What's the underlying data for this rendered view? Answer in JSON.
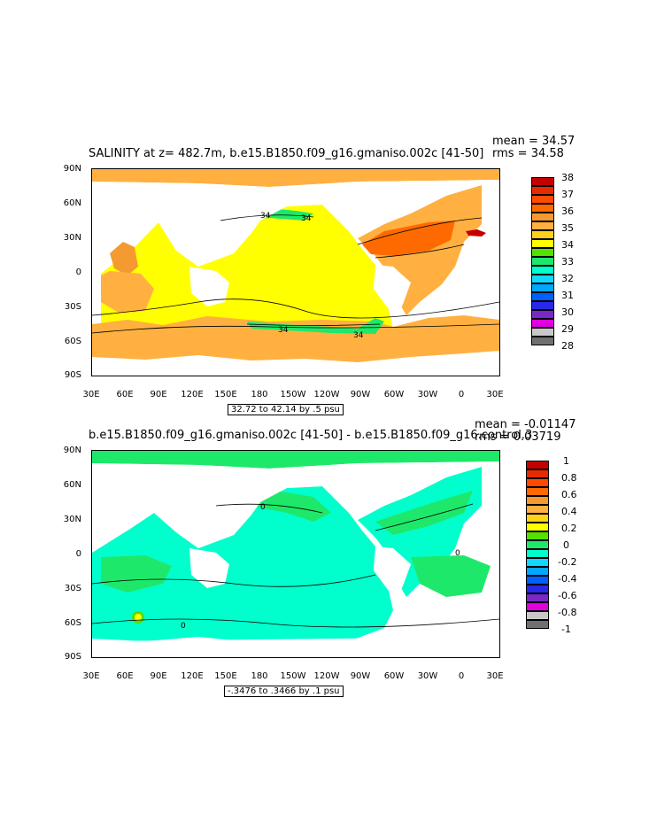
{
  "panels": [
    {
      "title": "SALINITY at z= 482.7m, b.e15.B1850.f09_g16.gmaniso.002c [41-50]",
      "stats_mean": "mean = 34.57",
      "stats_rms": "rms = 34.58",
      "range_label": "32.72 to 42.14 by .5 psu",
      "colorbar_labels": [
        "38",
        "37",
        "36",
        "35",
        "34",
        "33",
        "32",
        "31",
        "30",
        "29",
        "28"
      ],
      "colorbar_colors": [
        "#c40000",
        "#e82a00",
        "#ff6a00",
        "#f59a30",
        "#ffb040",
        "#ffd21a",
        "#ffff00",
        "#54e000",
        "#1ee86a",
        "#00ffcc",
        "#10d8ff",
        "#00a8ff",
        "#0060ff",
        "#2828e8",
        "#7a28c8",
        "#e000e0",
        "#c8c8c8",
        "#707070"
      ],
      "contour_labels": [
        "34",
        "34",
        "34",
        "34"
      ]
    },
    {
      "title": "b.e15.B1850.f09_g16.gmaniso.002c [41-50] - b.e15.B1850.f09_g16.control.3",
      "stats_mean": "mean = -0.01147",
      "stats_rms": "rms = 0.03719",
      "range_label": "-.3476 to .3466 by .1 psu",
      "colorbar_labels": [
        "1",
        "0.8",
        "0.6",
        "0.4",
        "0.2",
        "0",
        "-0.2",
        "-0.4",
        "-0.6",
        "-0.8",
        "-1"
      ],
      "colorbar_colors": [
        "#c40000",
        "#e82a00",
        "#ff6a00",
        "#f59a30",
        "#ffb040",
        "#ffd21a",
        "#ffff00",
        "#54e000",
        "#1ee86a",
        "#00ffcc",
        "#10d8ff",
        "#00a8ff",
        "#0060ff",
        "#2828e8",
        "#7a28c8",
        "#e000e0",
        "#c8c8c8",
        "#707070"
      ],
      "contour_labels": [
        "0",
        "0",
        "0"
      ]
    }
  ],
  "axes": {
    "lat_labels": [
      "90N",
      "60N",
      "30N",
      "0",
      "30S",
      "60S",
      "90S"
    ],
    "lon_labels": [
      "30E",
      "60E",
      "90E",
      "120E",
      "150E",
      "180",
      "150W",
      "120W",
      "90W",
      "60W",
      "30W",
      "0",
      "30E"
    ]
  }
}
